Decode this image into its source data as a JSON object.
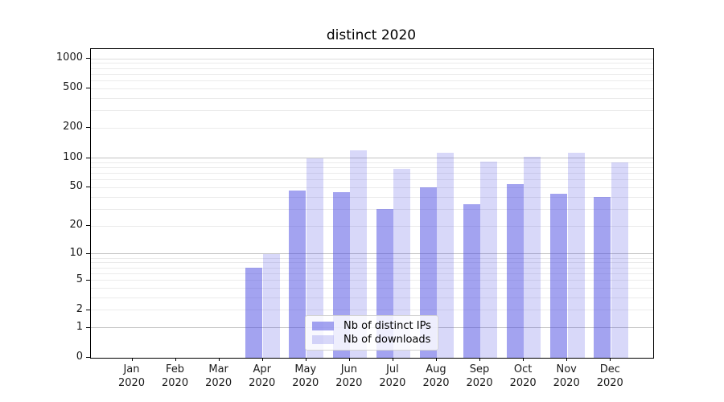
{
  "title": "distinct 2020",
  "chart_data": {
    "type": "bar",
    "title": "distinct 2020",
    "x_categories": [
      "Jan",
      "Feb",
      "Mar",
      "Apr",
      "May",
      "Jun",
      "Jul",
      "Aug",
      "Sep",
      "Oct",
      "Nov",
      "Dec"
    ],
    "x_year": "2020",
    "series": [
      {
        "name": "Nb of distinct IPs",
        "color": "rgba(71,71,226,0.50)",
        "values": [
          0,
          0,
          0,
          7,
          47,
          45,
          30,
          50,
          34,
          54,
          43,
          40
        ]
      },
      {
        "name": "Nb of downloads",
        "color": "rgba(71,71,226,0.21)",
        "values": [
          0,
          0,
          0,
          10,
          100,
          120,
          78,
          112,
          92,
          103,
          113,
          90
        ]
      }
    ],
    "yscale": "log1p",
    "ylim": [
      0,
      1250
    ],
    "yticks": [
      0,
      1,
      2,
      5,
      10,
      20,
      50,
      100,
      200,
      500,
      1000
    ],
    "grid": {
      "major": [
        1,
        10,
        100
      ],
      "mid": [
        1000
      ],
      "minor": [
        2,
        3,
        4,
        5,
        6,
        7,
        8,
        9,
        20,
        30,
        40,
        50,
        60,
        70,
        80,
        90,
        200,
        300,
        400,
        500,
        600,
        700,
        800,
        900
      ]
    },
    "legend": {
      "position": "lower-center",
      "entries": [
        "Nb of distinct IPs",
        "Nb of downloads"
      ]
    }
  },
  "colors": {
    "grid_major": "#c3c3c3",
    "grid_mid": "#dcdcdc",
    "grid_minor": "#ebebeb",
    "axis": "#000000",
    "text": "#1a1a1a",
    "legend_border": "#d2d2d2",
    "legend_bg": "rgba(255,255,255,0.82)"
  }
}
